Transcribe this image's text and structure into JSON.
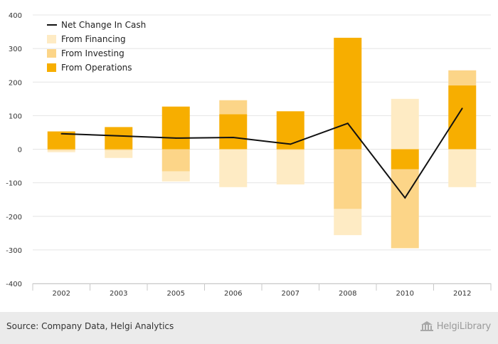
{
  "chart_data": {
    "type": "bar",
    "categories": [
      "2002",
      "2003",
      "2005",
      "2006",
      "2007",
      "2008",
      "2010",
      "2012"
    ],
    "series": [
      {
        "name": "From Operations",
        "kind": "bar",
        "color": "#f7ae00",
        "values": [
          53,
          66,
          127,
          104,
          113,
          332,
          -60,
          190
        ]
      },
      {
        "name": "From Investing",
        "kind": "bar",
        "color": "#fcd588",
        "values": [
          -3,
          -3,
          -66,
          42,
          -2,
          -178,
          -235,
          45
        ]
      },
      {
        "name": "From Financing",
        "kind": "bar",
        "color": "#feebc4",
        "values": [
          -6,
          -23,
          -30,
          -113,
          -103,
          -78,
          150,
          -113
        ]
      },
      {
        "name": "Net Change In Cash",
        "kind": "line",
        "color": "#111111",
        "values": [
          46,
          40,
          33,
          35,
          15,
          77,
          -145,
          122
        ]
      }
    ],
    "ylim": [
      -400,
      400
    ],
    "yticks": [
      -400,
      -300,
      -200,
      -100,
      0,
      100,
      200,
      300,
      400
    ],
    "grid": true,
    "legend_position": "top-left",
    "stacked": true
  },
  "legend": [
    {
      "label": "Net Change In Cash",
      "symbol": "line",
      "color": "#111111"
    },
    {
      "label": "From Financing",
      "symbol": "box",
      "color": "#feebc4"
    },
    {
      "label": "From Investing",
      "symbol": "box",
      "color": "#fcd588"
    },
    {
      "label": "From Operations",
      "symbol": "box",
      "color": "#f7ae00"
    }
  ],
  "footer": {
    "source": "Source: Company Data, Helgi Analytics",
    "logo_text": "HelgiLibrary",
    "logo_icon": "library-building-icon"
  }
}
